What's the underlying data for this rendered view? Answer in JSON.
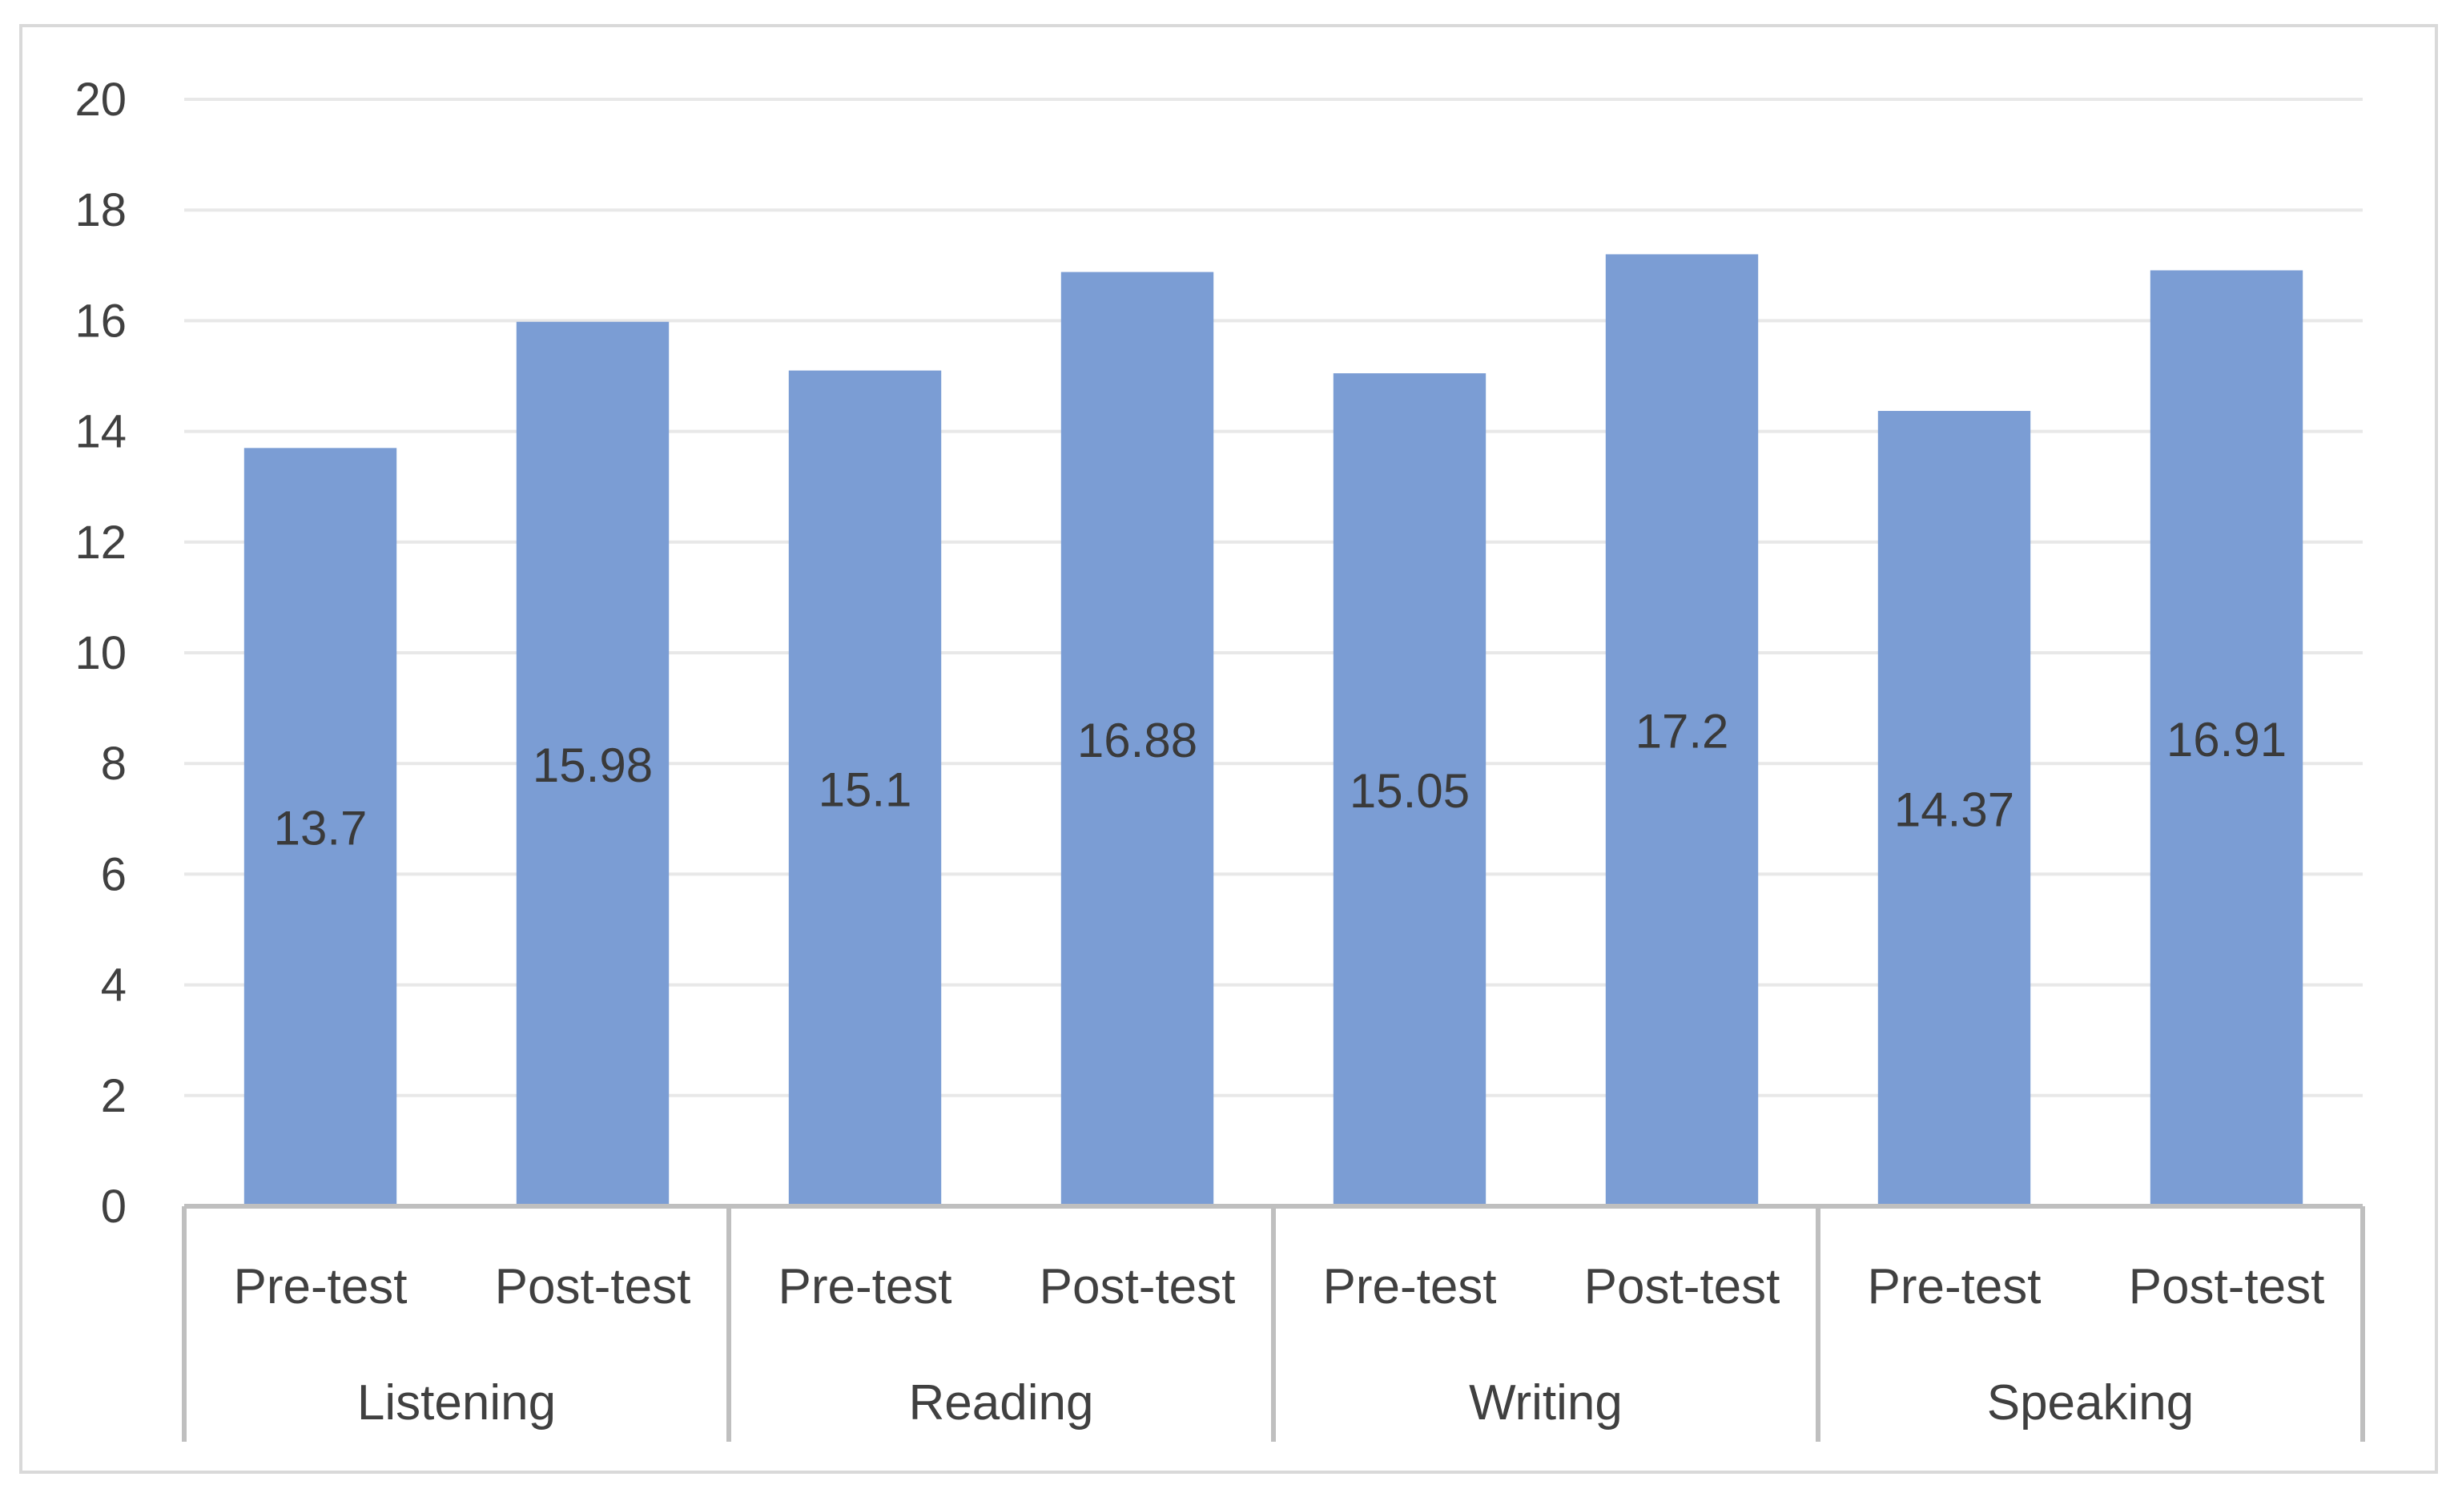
{
  "chart_data": {
    "type": "bar",
    "title": "",
    "xlabel": "",
    "ylabel": "",
    "ylim": [
      0,
      20
    ],
    "yticks": [
      0,
      2,
      4,
      6,
      8,
      10,
      12,
      14,
      16,
      18,
      20
    ],
    "grid": true,
    "legend": "none",
    "bar_color": "#7b9dd4",
    "groups": [
      {
        "name": "Listening",
        "categories": [
          "Pre-test",
          "Post-test"
        ],
        "values": [
          13.7,
          15.98
        ]
      },
      {
        "name": "Reading",
        "categories": [
          "Pre-test",
          "Post-test"
        ],
        "values": [
          15.1,
          16.88
        ]
      },
      {
        "name": "Writing",
        "categories": [
          "Pre-test",
          "Post-test"
        ],
        "values": [
          15.05,
          17.2
        ]
      },
      {
        "name": "Speaking",
        "categories": [
          "Pre-test",
          "Post-test"
        ],
        "values": [
          14.37,
          16.91
        ]
      }
    ],
    "data_labels": [
      "13.7",
      "15.98",
      "15.1",
      "16.88",
      "15.05",
      "17.2",
      "14.37",
      "16.91"
    ]
  }
}
